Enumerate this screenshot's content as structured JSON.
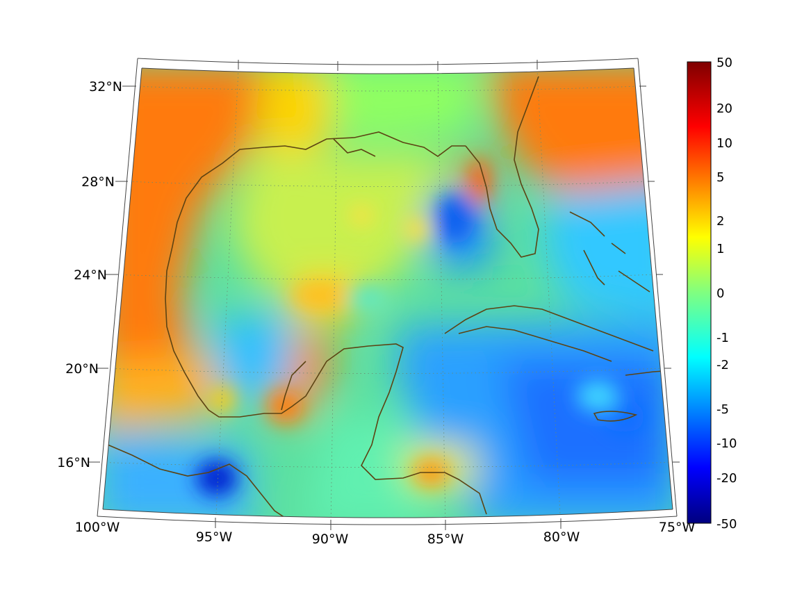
{
  "map": {
    "lat_labels": [
      "32°N",
      "28°N",
      "24°N",
      "20°N",
      "16°N"
    ],
    "lon_labels": [
      "100°W",
      "95°W",
      "90°W",
      "85°W",
      "80°W",
      "75°W"
    ],
    "extent": {
      "lon": [
        -100,
        -75
      ],
      "lat": [
        14,
        33
      ]
    },
    "grid": true,
    "coastline_color": "#5c4313"
  },
  "colorbar": {
    "ticks": [
      "50",
      "20",
      "10",
      "5",
      "2",
      "1",
      "0",
      "-1",
      "-2",
      "-5",
      "-10",
      "-20",
      "-50"
    ],
    "colormap": "jet",
    "placement": "right"
  }
}
